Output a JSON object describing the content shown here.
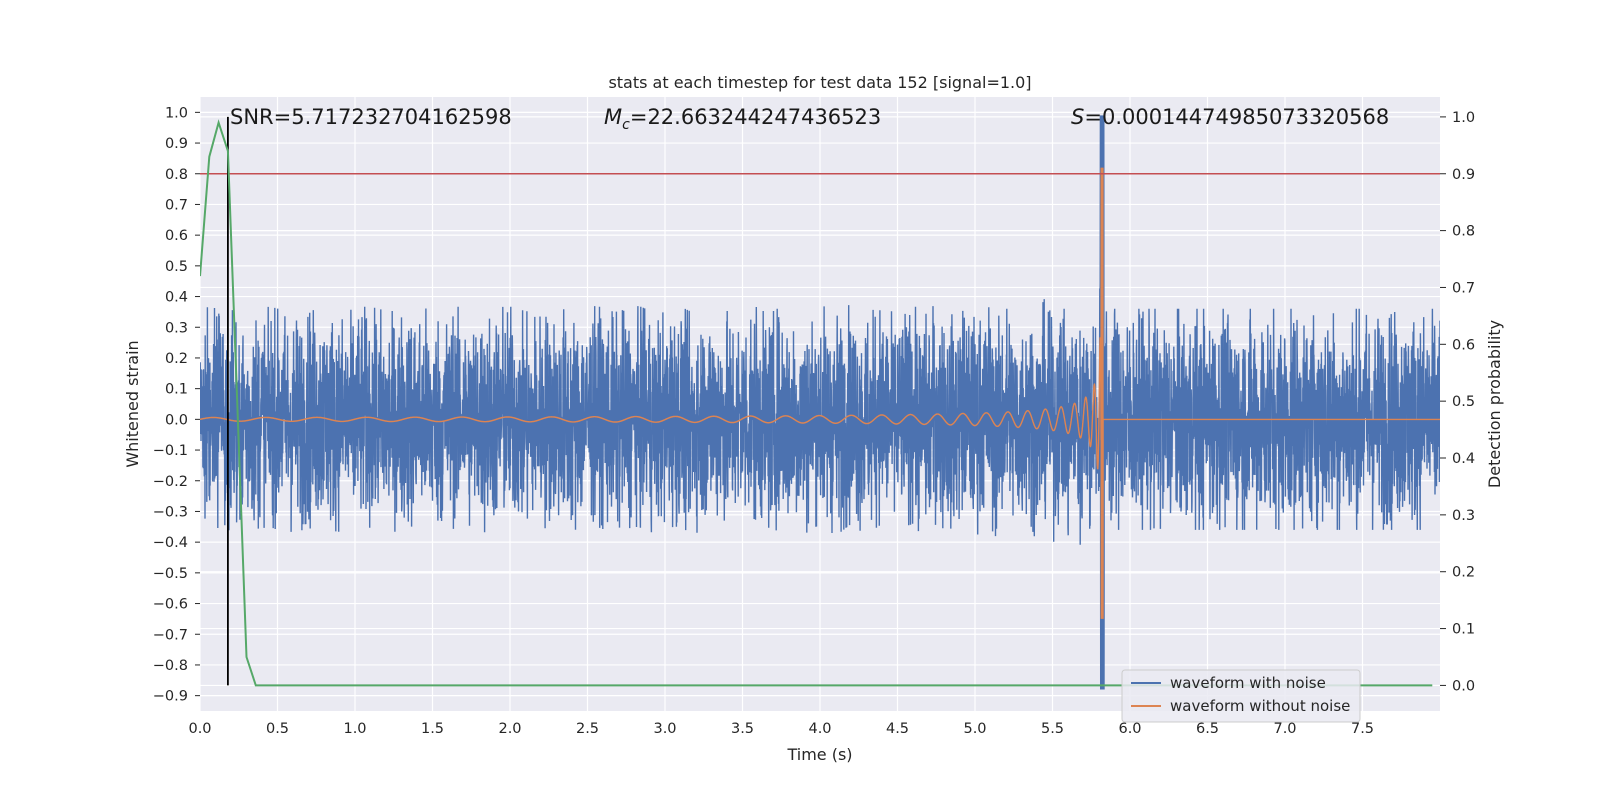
{
  "chart_data": {
    "type": "line",
    "title": "stats at each timestep for test data 152 [signal=1.0]",
    "xlabel": "Time (s)",
    "ylabel_left": "Whitened strain",
    "ylabel_right": "Detection probability",
    "xlim": [
      0.0,
      8.0
    ],
    "ylim_left": [
      -0.95,
      1.05
    ],
    "ylim_right": [
      -0.045,
      1.035
    ],
    "x_ticks": [
      "0.0",
      "0.5",
      "1.0",
      "1.5",
      "2.0",
      "2.5",
      "3.0",
      "3.5",
      "4.0",
      "4.5",
      "5.0",
      "5.5",
      "6.0",
      "6.5",
      "7.0",
      "7.5"
    ],
    "y_left_ticks": [
      "-0.9",
      "-0.8",
      "-0.7",
      "-0.6",
      "-0.5",
      "-0.4",
      "-0.3",
      "-0.2",
      "-0.1",
      "0.0",
      "0.1",
      "0.2",
      "0.3",
      "0.4",
      "0.5",
      "0.6",
      "0.7",
      "0.8",
      "0.9",
      "1.0"
    ],
    "y_right_ticks": [
      "0.0",
      "0.1",
      "0.2",
      "0.3",
      "0.4",
      "0.5",
      "0.6",
      "0.7",
      "0.8",
      "0.9",
      "1.0"
    ],
    "annotations": {
      "snr_prefix": "SNR=",
      "snr": "5.717232704162598",
      "mc_label": "M",
      "mc_sub": "c",
      "mc_eq": "=",
      "mc": "22.663244247436523",
      "s_label": "S",
      "s_eq": "=",
      "s": "0.00014474985073320568"
    },
    "threshold_right": 0.9,
    "vertical_marker_x": 0.18,
    "merger_time": 5.82,
    "series": [
      {
        "name": "waveform with noise",
        "color": "#4c72b0",
        "noise_amplitude": 0.33,
        "x_range": [
          0.0,
          8.0
        ]
      },
      {
        "name": "waveform without noise",
        "color": "#dd8452",
        "x_range": [
          0.0,
          8.0
        ]
      },
      {
        "name": "detection probability",
        "color": "#55a868",
        "axis": "right",
        "x": [
          0.0,
          0.06,
          0.12,
          0.18,
          0.24,
          0.3,
          0.36,
          0.42,
          7.95
        ],
        "y": [
          0.72,
          0.93,
          0.99,
          0.94,
          0.5,
          0.05,
          0.0,
          0.0,
          0.0
        ]
      }
    ],
    "legend": {
      "location": "lower-right",
      "entries": [
        {
          "label": "waveform with noise",
          "color": "#4c72b0"
        },
        {
          "label": "waveform without noise",
          "color": "#dd8452"
        }
      ]
    },
    "colors": {
      "plot_bg": "#eaeaf2",
      "grid": "#ffffff",
      "threshold": "#c44e52",
      "marker": "#000000"
    }
  }
}
